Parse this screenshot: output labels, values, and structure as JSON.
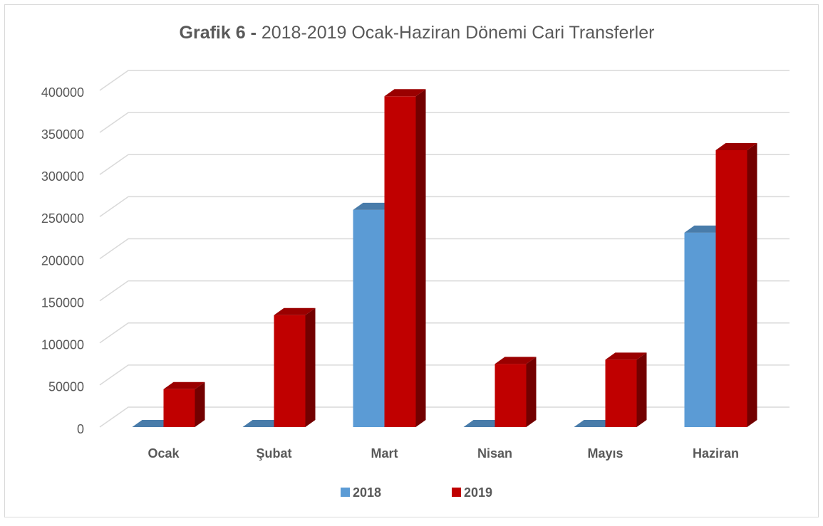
{
  "chart_data": {
    "type": "bar3d",
    "title_bold": "Grafik 6 -",
    "title": "2018-2019 Ocak-Haziran Dönemi Cari Transferler",
    "categories": [
      "Ocak",
      "Şubat",
      "Mart",
      "Nisan",
      "Mayıs",
      "Haziran"
    ],
    "series": [
      {
        "name": "2018",
        "color": "#5b9bd5",
        "values": [
          0,
          0,
          258000,
          0,
          0,
          231000
        ]
      },
      {
        "name": "2019",
        "color": "#c00000",
        "values": [
          45000,
          133000,
          393000,
          75000,
          80000,
          329000
        ]
      }
    ],
    "ylim": [
      0,
      400000
    ],
    "yticks": [
      0,
      50000,
      100000,
      150000,
      200000,
      250000,
      300000,
      350000,
      400000
    ],
    "grid": true,
    "legend": "bottom"
  }
}
